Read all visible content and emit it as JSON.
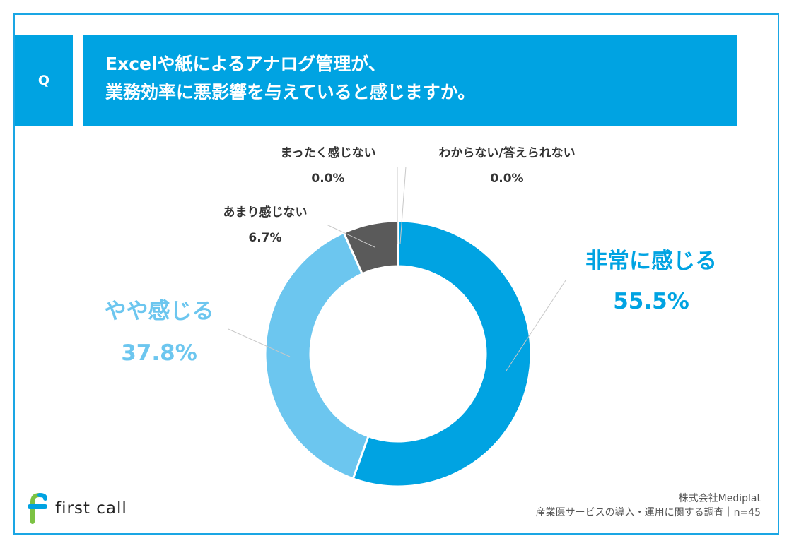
{
  "header": {
    "q_label": "Q",
    "title_line1": "Excelや紙によるアナログ管理が、",
    "title_line2": "業務効率に悪影響を与えていると感じますか。"
  },
  "chart_data": {
    "type": "pie",
    "variant": "donut",
    "title": "Excelや紙によるアナログ管理が、業務効率に悪影響を与えていると感じますか。",
    "slices": [
      {
        "label": "非常に感じる",
        "value": 55.5,
        "display": "55.5%",
        "color": "#00a3e2"
      },
      {
        "label": "やや感じる",
        "value": 37.8,
        "display": "37.8%",
        "color": "#6cc6ef"
      },
      {
        "label": "あまり感じない",
        "value": 6.7,
        "display": "6.7%",
        "color": "#5a5a5a"
      },
      {
        "label": "まったく感じない",
        "value": 0.0,
        "display": "0.0%",
        "color": "#5a5a5a"
      },
      {
        "label": "わからない/答えられない",
        "value": 0.0,
        "display": "0.0%",
        "color": "#6cc6ef"
      }
    ]
  },
  "footer": {
    "logo_text": "first call",
    "company": "株式会社Mediplat",
    "survey": "産業医サービスの導入・運用に関する調査｜n=45"
  },
  "colors": {
    "brand_blue": "#00a3e2",
    "light_blue": "#6cc6ef",
    "gray": "#5a5a5a",
    "logo_green": "#7cc243"
  }
}
